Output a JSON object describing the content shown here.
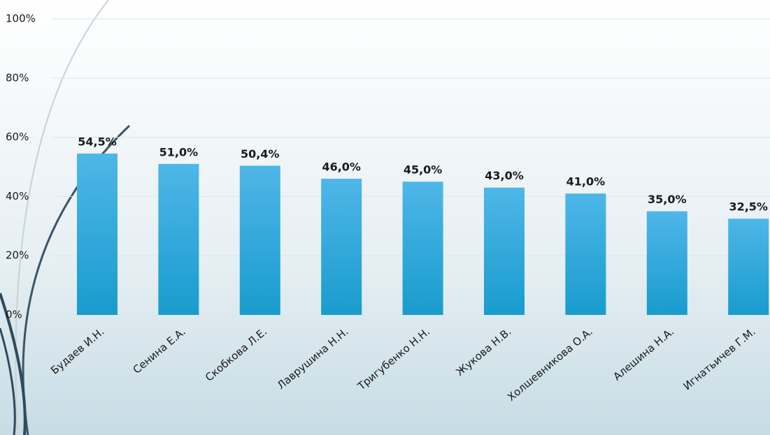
{
  "chart_data": {
    "type": "bar",
    "categories": [
      "Будаев И.Н.",
      "Сенина Е.А.",
      "Скобкова Л.Е.",
      "Лаврушина Н.Н.",
      "Тригубенко Н.Н.",
      "Жукова Н.В.",
      "Холшевникова О.А.",
      "Алешина Н.А.",
      "Игнатьичев Г.М."
    ],
    "values": [
      54.5,
      51.0,
      50.4,
      46.0,
      45.0,
      43.0,
      41.0,
      35.0,
      32.5
    ],
    "value_labels": [
      "54,5%",
      "51,0%",
      "50,4%",
      "46,0%",
      "45,0%",
      "43,0%",
      "41,0%",
      "35,0%",
      "32,5%"
    ],
    "color": "#2aa6da",
    "ylim": [
      0,
      100
    ],
    "yticks": [
      {
        "value": 0,
        "label": "0%"
      },
      {
        "value": 20,
        "label": "20%"
      },
      {
        "value": 40,
        "label": "40%"
      },
      {
        "value": 60,
        "label": "60%"
      },
      {
        "value": 80,
        "label": "80%"
      },
      {
        "value": 100,
        "label": "100%"
      }
    ],
    "grid": true
  }
}
